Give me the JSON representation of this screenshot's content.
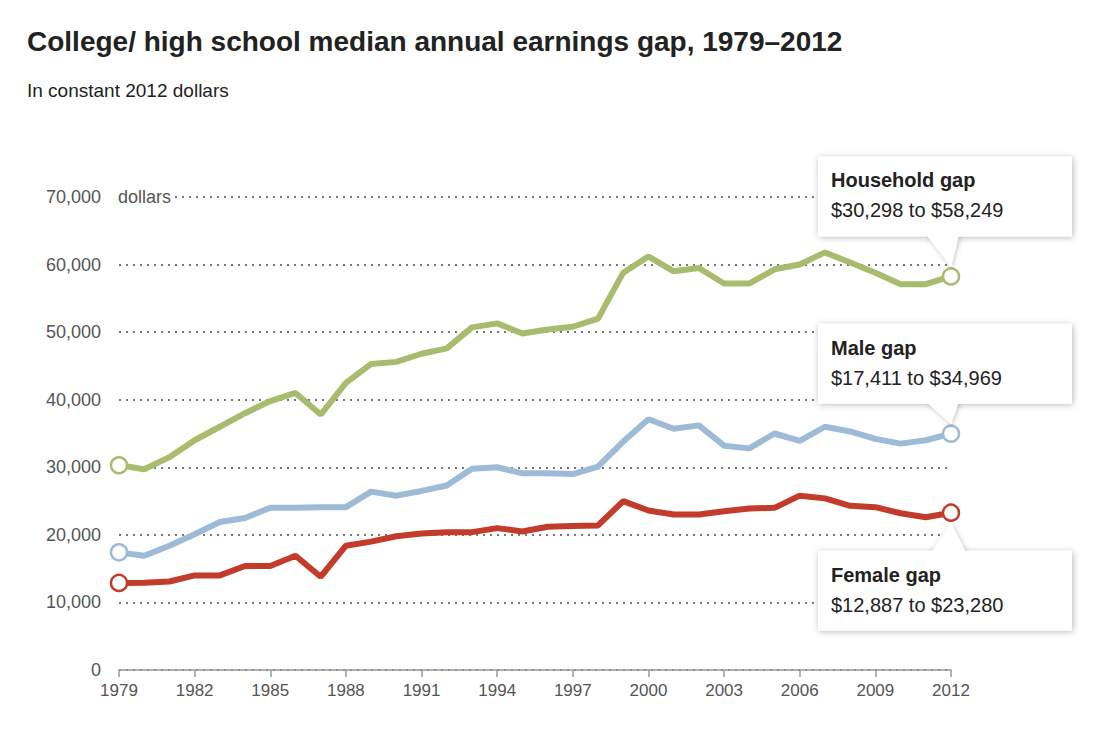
{
  "chart_data": {
    "type": "line",
    "title": "College/ high school median annual earnings gap, 1979–2012",
    "subtitle": "In constant 2012 dollars",
    "ylabel": "dollars",
    "x": [
      1979,
      1980,
      1981,
      1982,
      1983,
      1984,
      1985,
      1986,
      1987,
      1988,
      1989,
      1990,
      1991,
      1992,
      1993,
      1994,
      1995,
      1996,
      1997,
      1998,
      1999,
      2000,
      2001,
      2002,
      2003,
      2004,
      2005,
      2006,
      2007,
      2008,
      2009,
      2010,
      2011,
      2012
    ],
    "series": [
      {
        "name": "Household gap",
        "color": "#a9bb6c",
        "annotation": "$30,298 to $58,249",
        "values": [
          30298,
          29700,
          31500,
          34000,
          36000,
          38000,
          39800,
          41000,
          37800,
          42500,
          45300,
          45600,
          46800,
          47600,
          50700,
          51300,
          49800,
          50400,
          50800,
          52000,
          58800,
          61200,
          59000,
          59500,
          57200,
          57200,
          59300,
          60000,
          61800,
          60300,
          58800,
          57100,
          57100,
          58249
        ]
      },
      {
        "name": "Male gap",
        "color": "#9dbad7",
        "annotation": "$17,411 to $34,969",
        "values": [
          17411,
          16900,
          18400,
          20100,
          21900,
          22500,
          24000,
          24000,
          24100,
          24100,
          26400,
          25800,
          26500,
          27300,
          29800,
          30000,
          29100,
          29100,
          29000,
          30100,
          33800,
          37100,
          35700,
          36200,
          33200,
          32800,
          35000,
          33900,
          36000,
          35300,
          34200,
          33500,
          34000,
          34969
        ]
      },
      {
        "name": "Female gap",
        "color": "#c33b2b",
        "annotation": "$12,887 to $23,280",
        "values": [
          12887,
          12900,
          13100,
          14000,
          14000,
          15400,
          15400,
          16900,
          13800,
          18400,
          19000,
          19800,
          20200,
          20400,
          20400,
          21000,
          20500,
          21200,
          21300,
          21400,
          25000,
          23600,
          23000,
          23000,
          23500,
          23900,
          24000,
          25800,
          25400,
          24300,
          24100,
          23200,
          22600,
          23280
        ]
      }
    ],
    "xlim": [
      1979,
      2012
    ],
    "xticks": [
      1979,
      1982,
      1985,
      1988,
      1991,
      1994,
      1997,
      2000,
      2003,
      2006,
      2009,
      2012
    ],
    "ylim": [
      0,
      70000
    ],
    "yticks": [
      0,
      {
        "value": 10000,
        "label": "10,000"
      },
      {
        "value": 20000,
        "label": "20,000"
      },
      {
        "value": 30000,
        "label": "30,000"
      },
      {
        "value": 40000,
        "label": "40,000"
      },
      {
        "value": 50000,
        "label": "50,000"
      },
      {
        "value": 60000,
        "label": "60,000"
      },
      {
        "value": 70000,
        "label": "70,000"
      }
    ],
    "grid": true
  }
}
